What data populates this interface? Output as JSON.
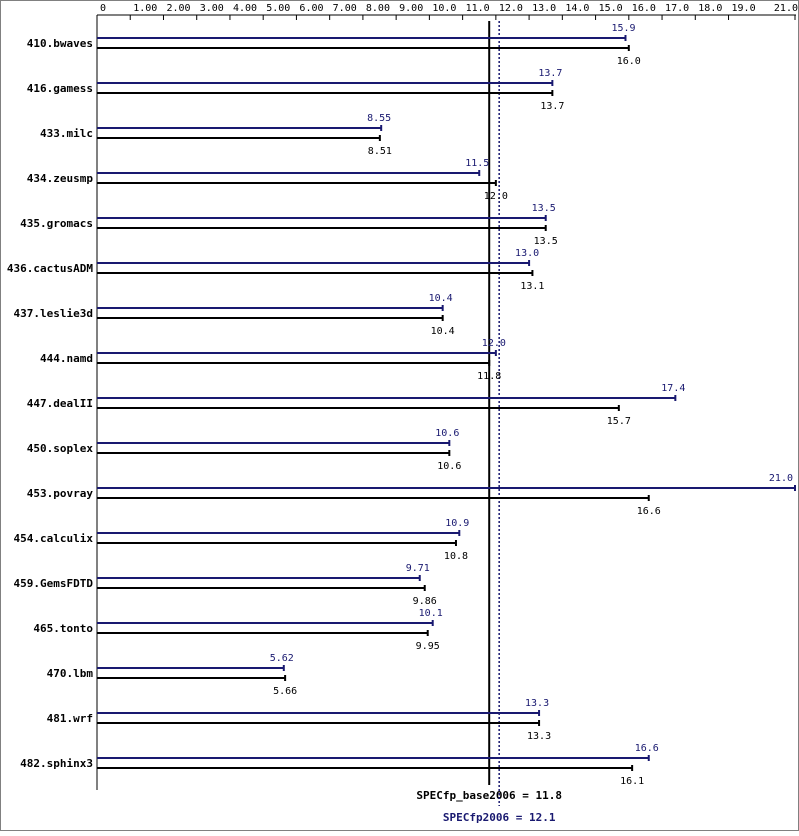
{
  "colors": {
    "base": "#000000",
    "peak": "#191970",
    "background": "#ffffff"
  },
  "chart_data": {
    "type": "bar",
    "orientation": "horizontal",
    "xlim": [
      0,
      21.0
    ],
    "axis_position": "top",
    "tick_values": [
      0,
      1,
      2,
      3,
      4,
      5,
      6,
      7,
      8,
      9,
      10,
      11,
      12,
      13,
      14,
      15,
      16,
      17,
      18,
      19,
      21
    ],
    "tick_labels": [
      "0",
      "1.00",
      "2.00",
      "3.00",
      "4.00",
      "5.00",
      "6.00",
      "7.00",
      "8.00",
      "9.00",
      "10.0",
      "11.0",
      "12.0",
      "13.0",
      "14.0",
      "15.0",
      "16.0",
      "17.0",
      "18.0",
      "19.0",
      "21.0"
    ],
    "categories": [
      "410.bwaves",
      "416.gamess",
      "433.milc",
      "434.zeusmp",
      "435.gromacs",
      "436.cactusADM",
      "437.leslie3d",
      "444.namd",
      "447.dealII",
      "450.soplex",
      "453.povray",
      "454.calculix",
      "459.GemsFDTD",
      "465.tonto",
      "470.lbm",
      "481.wrf",
      "482.sphinx3"
    ],
    "series": [
      {
        "key": "peak",
        "values": [
          15.9,
          13.7,
          8.55,
          11.5,
          13.5,
          13.0,
          10.4,
          12.0,
          17.4,
          10.6,
          21.0,
          10.9,
          9.71,
          10.1,
          5.62,
          13.3,
          16.6
        ],
        "labels": [
          "15.9",
          "13.7",
          "8.55",
          "11.5",
          "13.5",
          "13.0",
          "10.4",
          "12.0",
          "17.4",
          "10.6",
          "21.0",
          "10.9",
          "9.71",
          "10.1",
          "5.62",
          "13.3",
          "16.6"
        ]
      },
      {
        "key": "base",
        "values": [
          16.0,
          13.7,
          8.51,
          12.0,
          13.5,
          13.1,
          10.4,
          11.8,
          15.7,
          10.6,
          16.6,
          10.8,
          9.86,
          9.95,
          5.66,
          13.3,
          16.1
        ],
        "labels": [
          "16.0",
          "13.7",
          "8.51",
          "12.0",
          "13.5",
          "13.1",
          "10.4",
          "11.8",
          "15.7",
          "10.6",
          "16.6",
          "10.8",
          "9.86",
          "9.95",
          "5.66",
          "13.3",
          "16.1"
        ]
      }
    ],
    "reference_lines": [
      {
        "key": "base",
        "value": 11.8,
        "label": "SPECfp_base2006 = 11.8",
        "style": "solid"
      },
      {
        "key": "peak",
        "value": 12.1,
        "label": "SPECfp2006 = 12.1",
        "style": "dotted"
      }
    ],
    "grid": false,
    "legend": "none"
  }
}
